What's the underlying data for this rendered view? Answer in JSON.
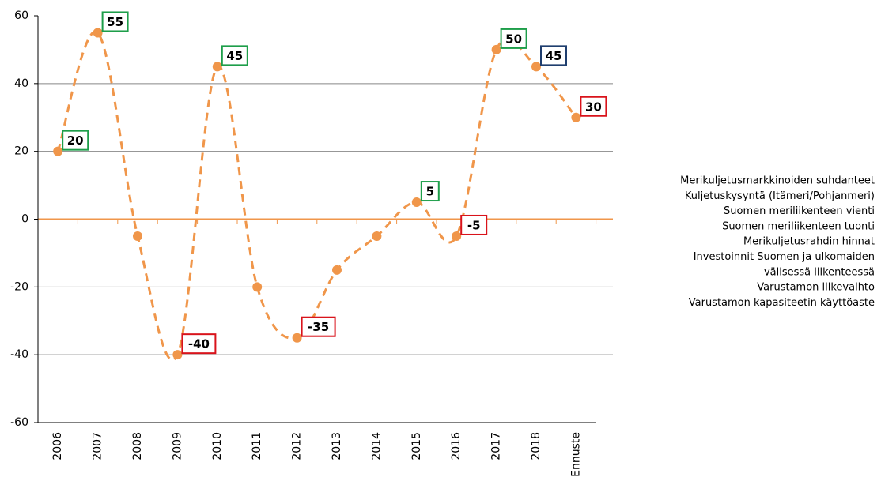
{
  "chart_data": {
    "type": "line",
    "categories": [
      "2006",
      "2007",
      "2008",
      "2009",
      "2010",
      "2011",
      "2012",
      "2013",
      "2014",
      "2015",
      "2016",
      "2017",
      "2018",
      "Ennuste"
    ],
    "values": [
      20,
      55,
      -5,
      -40,
      45,
      -20,
      -35,
      -15,
      -5,
      5,
      -5,
      50,
      45,
      30
    ],
    "color": "#f0964a",
    "label_colors": [
      "#1e9e4a",
      "#1e9e4a",
      null,
      "#d9131b",
      "#1e9e4a",
      null,
      "#d9131b",
      null,
      null,
      "#1e9e4a",
      "#d9131b",
      "#1e9e4a",
      "#1f3e6e",
      "#d9131b"
    ],
    "ylim": [
      -60,
      60
    ],
    "yticks": [
      -60,
      -40,
      -20,
      0,
      20,
      40,
      60
    ],
    "grid": true,
    "annotations": [
      "Merikuljetusmarkkinoiden suhdanteet",
      "Kuljetuskysyntä (Itämeri/Pohjanmeri)",
      "Suomen meriliikenteen vienti",
      "Suomen meriliikenteen tuonti",
      "Merikuljetusrahdin hinnat",
      "Investoinnit Suomen ja ulkomaiden",
      "välisessä liikenteessä",
      "Varustamon liikevaihto",
      "Varustamon kapasiteetin käyttöaste"
    ]
  }
}
